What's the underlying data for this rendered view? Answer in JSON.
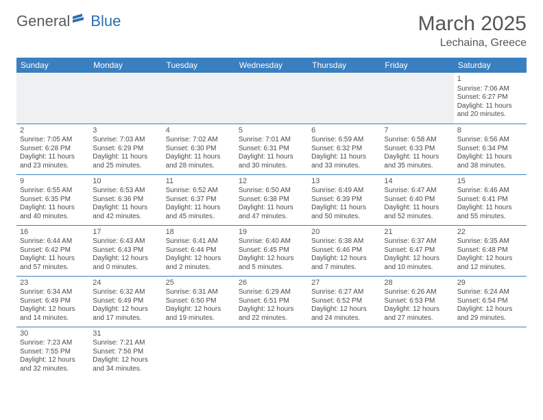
{
  "logo": {
    "text1": "General",
    "text2": "Blue"
  },
  "title": "March 2025",
  "location": "Lechaina, Greece",
  "colors": {
    "header_bg": "#3a7fc0",
    "header_text": "#ffffff",
    "border": "#3a7fc0",
    "text": "#4a4a4a",
    "empty_bg": "#eef0f1"
  },
  "day_names": [
    "Sunday",
    "Monday",
    "Tuesday",
    "Wednesday",
    "Thursday",
    "Friday",
    "Saturday"
  ],
  "weeks": [
    [
      null,
      null,
      null,
      null,
      null,
      null,
      {
        "n": "1",
        "sr": "7:06 AM",
        "ss": "6:27 PM",
        "dl": "11 hours and 20 minutes."
      }
    ],
    [
      {
        "n": "2",
        "sr": "7:05 AM",
        "ss": "6:28 PM",
        "dl": "11 hours and 23 minutes."
      },
      {
        "n": "3",
        "sr": "7:03 AM",
        "ss": "6:29 PM",
        "dl": "11 hours and 25 minutes."
      },
      {
        "n": "4",
        "sr": "7:02 AM",
        "ss": "6:30 PM",
        "dl": "11 hours and 28 minutes."
      },
      {
        "n": "5",
        "sr": "7:01 AM",
        "ss": "6:31 PM",
        "dl": "11 hours and 30 minutes."
      },
      {
        "n": "6",
        "sr": "6:59 AM",
        "ss": "6:32 PM",
        "dl": "11 hours and 33 minutes."
      },
      {
        "n": "7",
        "sr": "6:58 AM",
        "ss": "6:33 PM",
        "dl": "11 hours and 35 minutes."
      },
      {
        "n": "8",
        "sr": "6:56 AM",
        "ss": "6:34 PM",
        "dl": "11 hours and 38 minutes."
      }
    ],
    [
      {
        "n": "9",
        "sr": "6:55 AM",
        "ss": "6:35 PM",
        "dl": "11 hours and 40 minutes."
      },
      {
        "n": "10",
        "sr": "6:53 AM",
        "ss": "6:36 PM",
        "dl": "11 hours and 42 minutes."
      },
      {
        "n": "11",
        "sr": "6:52 AM",
        "ss": "6:37 PM",
        "dl": "11 hours and 45 minutes."
      },
      {
        "n": "12",
        "sr": "6:50 AM",
        "ss": "6:38 PM",
        "dl": "11 hours and 47 minutes."
      },
      {
        "n": "13",
        "sr": "6:49 AM",
        "ss": "6:39 PM",
        "dl": "11 hours and 50 minutes."
      },
      {
        "n": "14",
        "sr": "6:47 AM",
        "ss": "6:40 PM",
        "dl": "11 hours and 52 minutes."
      },
      {
        "n": "15",
        "sr": "6:46 AM",
        "ss": "6:41 PM",
        "dl": "11 hours and 55 minutes."
      }
    ],
    [
      {
        "n": "16",
        "sr": "6:44 AM",
        "ss": "6:42 PM",
        "dl": "11 hours and 57 minutes."
      },
      {
        "n": "17",
        "sr": "6:43 AM",
        "ss": "6:43 PM",
        "dl": "12 hours and 0 minutes."
      },
      {
        "n": "18",
        "sr": "6:41 AM",
        "ss": "6:44 PM",
        "dl": "12 hours and 2 minutes."
      },
      {
        "n": "19",
        "sr": "6:40 AM",
        "ss": "6:45 PM",
        "dl": "12 hours and 5 minutes."
      },
      {
        "n": "20",
        "sr": "6:38 AM",
        "ss": "6:46 PM",
        "dl": "12 hours and 7 minutes."
      },
      {
        "n": "21",
        "sr": "6:37 AM",
        "ss": "6:47 PM",
        "dl": "12 hours and 10 minutes."
      },
      {
        "n": "22",
        "sr": "6:35 AM",
        "ss": "6:48 PM",
        "dl": "12 hours and 12 minutes."
      }
    ],
    [
      {
        "n": "23",
        "sr": "6:34 AM",
        "ss": "6:49 PM",
        "dl": "12 hours and 14 minutes."
      },
      {
        "n": "24",
        "sr": "6:32 AM",
        "ss": "6:49 PM",
        "dl": "12 hours and 17 minutes."
      },
      {
        "n": "25",
        "sr": "6:31 AM",
        "ss": "6:50 PM",
        "dl": "12 hours and 19 minutes."
      },
      {
        "n": "26",
        "sr": "6:29 AM",
        "ss": "6:51 PM",
        "dl": "12 hours and 22 minutes."
      },
      {
        "n": "27",
        "sr": "6:27 AM",
        "ss": "6:52 PM",
        "dl": "12 hours and 24 minutes."
      },
      {
        "n": "28",
        "sr": "6:26 AM",
        "ss": "6:53 PM",
        "dl": "12 hours and 27 minutes."
      },
      {
        "n": "29",
        "sr": "6:24 AM",
        "ss": "6:54 PM",
        "dl": "12 hours and 29 minutes."
      }
    ],
    [
      {
        "n": "30",
        "sr": "7:23 AM",
        "ss": "7:55 PM",
        "dl": "12 hours and 32 minutes."
      },
      {
        "n": "31",
        "sr": "7:21 AM",
        "ss": "7:56 PM",
        "dl": "12 hours and 34 minutes."
      },
      null,
      null,
      null,
      null,
      null
    ]
  ],
  "labels": {
    "sunrise": "Sunrise:",
    "sunset": "Sunset:",
    "daylight": "Daylight:"
  }
}
